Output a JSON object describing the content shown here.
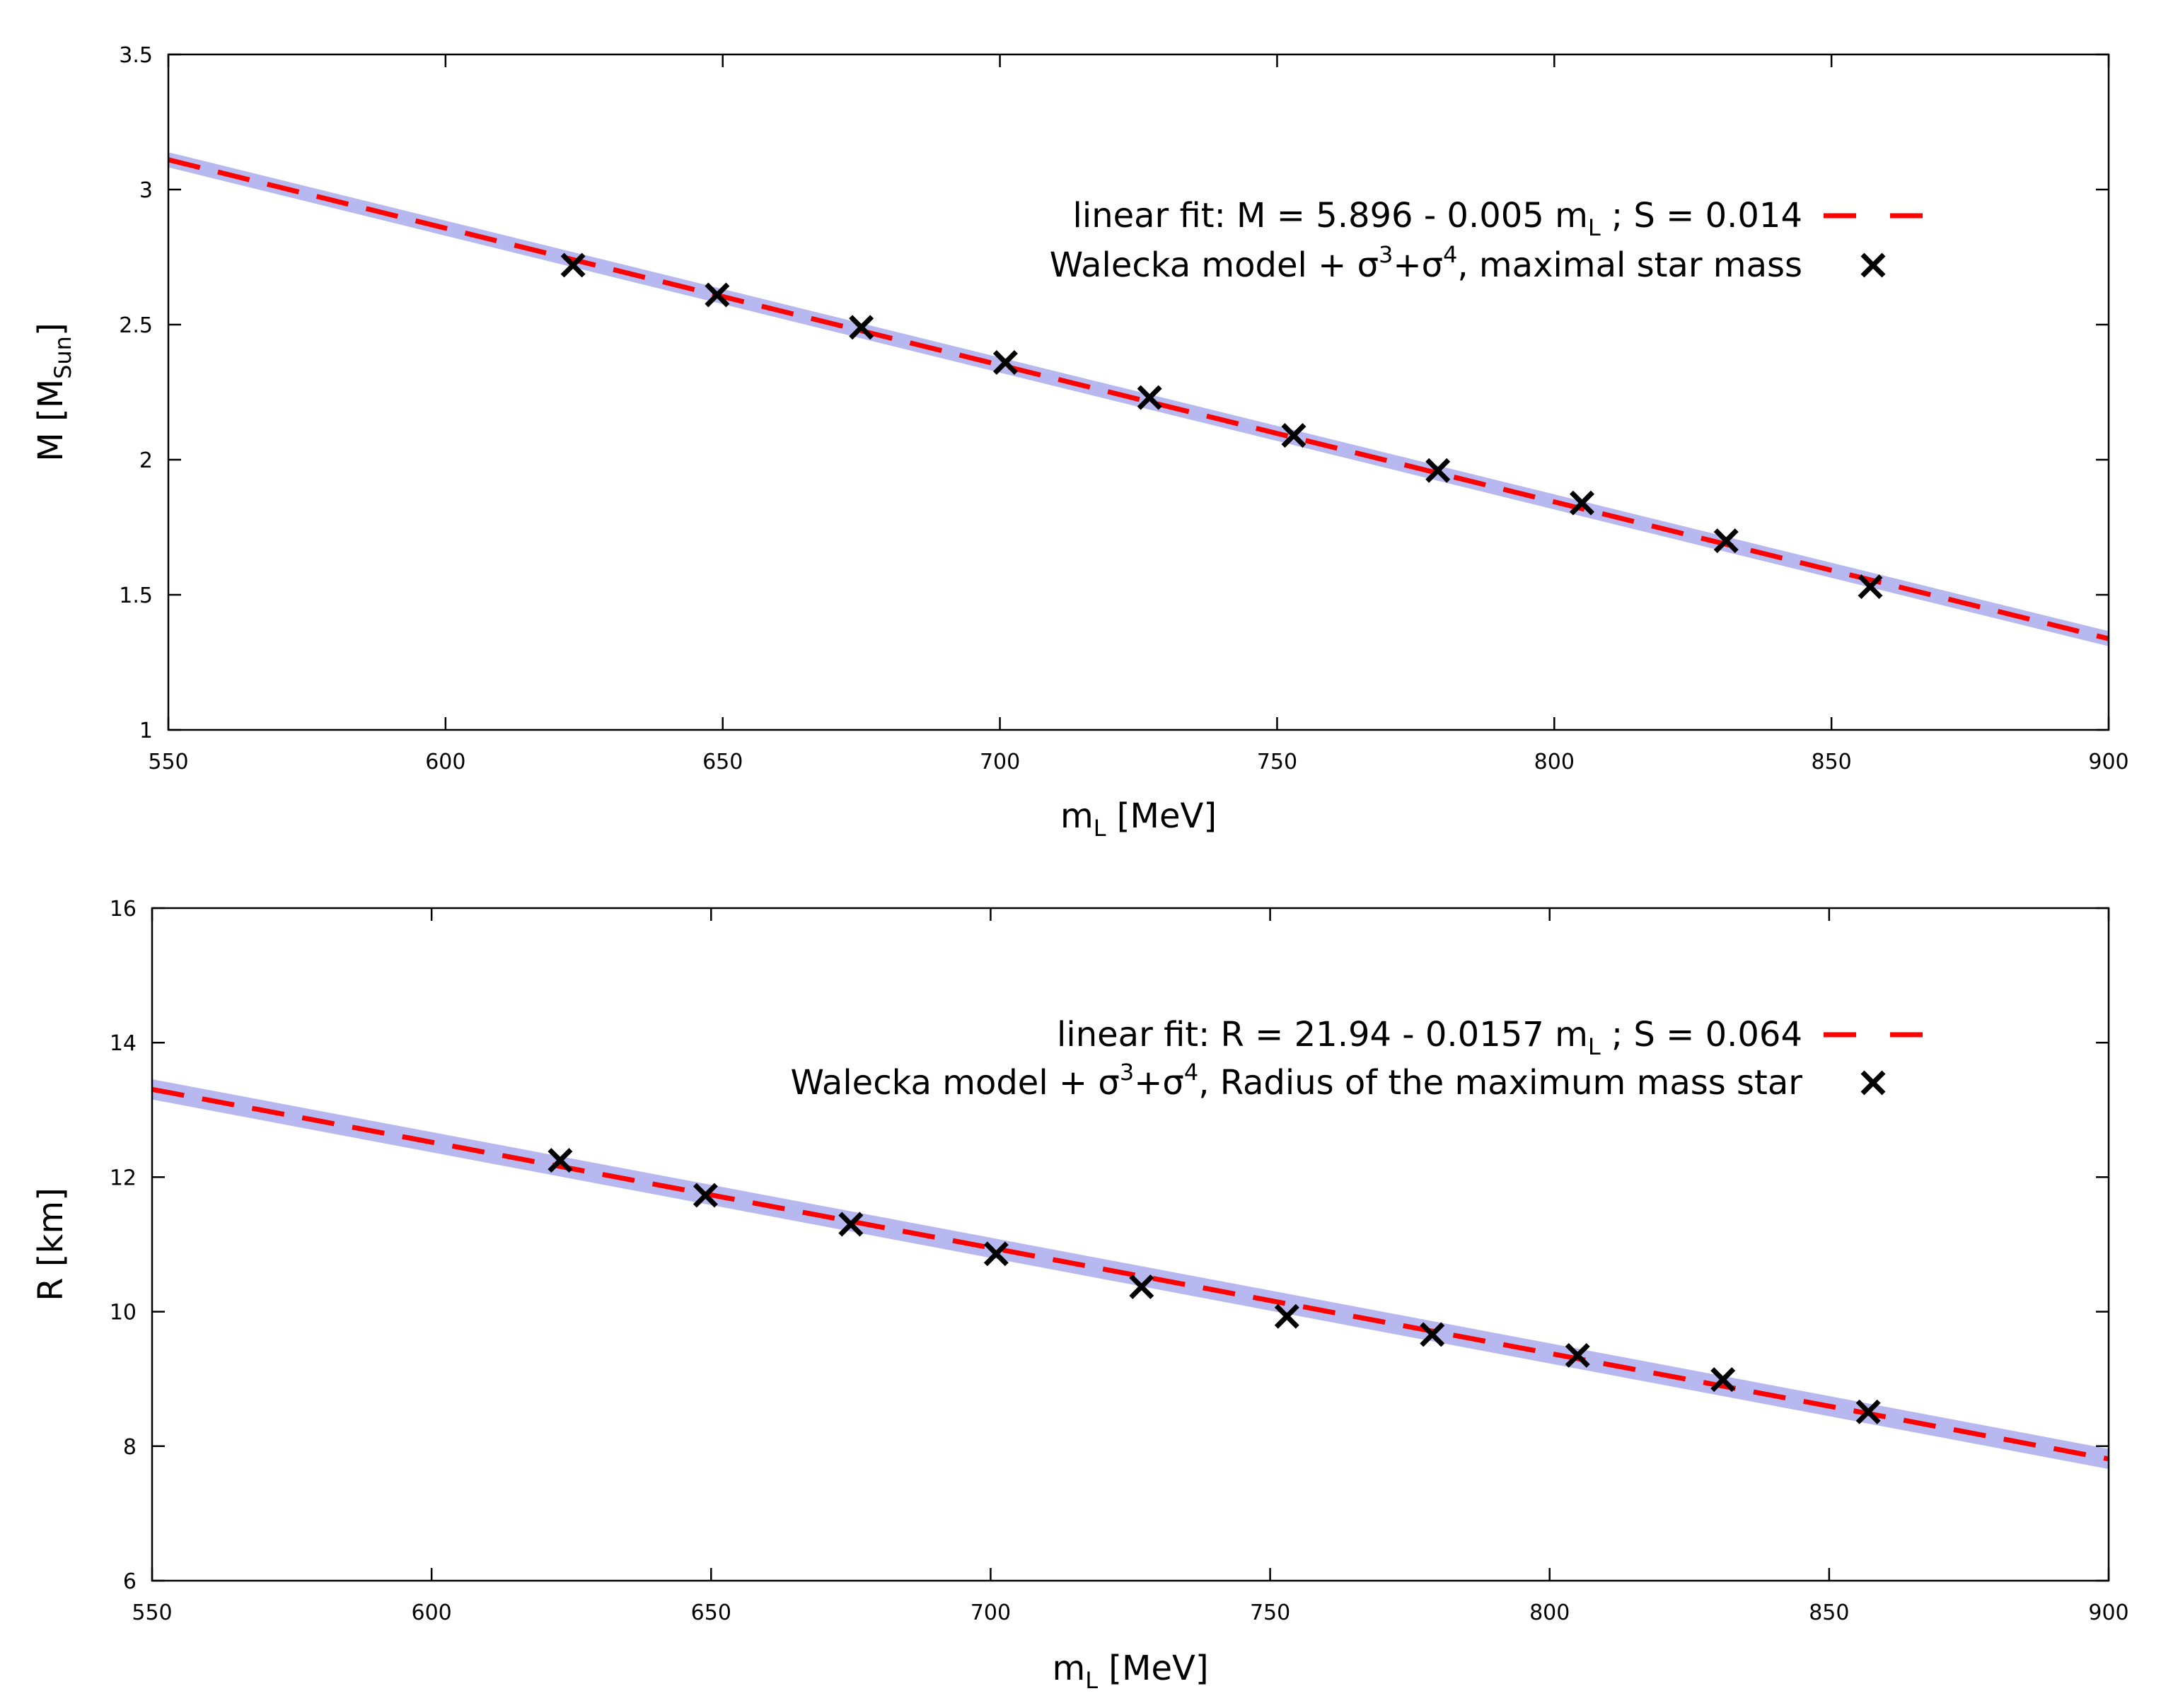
{
  "chart_data": [
    {
      "type": "scatter",
      "xlabel": {
        "main": "m",
        "sub": "L",
        "rest": " [MeV]"
      },
      "ylabel": {
        "main": "M [M",
        "sub": "Sun",
        "rest": "]"
      },
      "xlim": [
        550,
        900
      ],
      "ylim": [
        1,
        3.5
      ],
      "xticks": [
        550,
        600,
        650,
        700,
        750,
        800,
        850,
        900
      ],
      "yticks": [
        1,
        1.5,
        2,
        2.5,
        3,
        3.5
      ],
      "ytick_labels": [
        "1",
        "1.5",
        "2",
        "2.5",
        "3",
        "3.5"
      ],
      "grid": false,
      "legend_position": "top-right",
      "fit": {
        "intercept": 5.896,
        "slope": -0.005065,
        "band_halfwidth": 0.028
      },
      "series": [
        {
          "name": "linear fit",
          "style": "dashed-line",
          "legend_parts": [
            "linear fit: M = 5.896 - 0.005 m",
            "L",
            " ; S = 0.014"
          ]
        },
        {
          "name": "Walecka model, maximal star mass",
          "style": "cross-marker",
          "legend_parts": [
            "Walecka model + σ",
            "3",
            "+σ",
            "4",
            ", maximal star mass"
          ],
          "x": [
            623,
            649,
            675,
            701,
            727,
            753,
            779,
            805,
            831,
            857
          ],
          "y": [
            2.72,
            2.61,
            2.49,
            2.36,
            2.23,
            2.09,
            1.96,
            1.84,
            1.7,
            1.53
          ]
        }
      ]
    },
    {
      "type": "scatter",
      "xlabel": {
        "main": "m",
        "sub": "L",
        "rest": " [MeV]"
      },
      "ylabel": {
        "main": "R [km]",
        "sub": "",
        "rest": ""
      },
      "xlim": [
        550,
        900
      ],
      "ylim": [
        6,
        16
      ],
      "xticks": [
        550,
        600,
        650,
        700,
        750,
        800,
        850,
        900
      ],
      "yticks": [
        6,
        8,
        10,
        12,
        14,
        16
      ],
      "ytick_labels": [
        "6",
        "8",
        "10",
        "12",
        "14",
        "16"
      ],
      "grid": false,
      "legend_position": "top-right",
      "fit": {
        "intercept": 21.94,
        "slope": -0.0157,
        "band_halfwidth": 0.15
      },
      "series": [
        {
          "name": "linear fit",
          "style": "dashed-line",
          "legend_parts": [
            "linear fit: R = 21.94 - 0.0157 m",
            "L",
            " ; S = 0.064"
          ]
        },
        {
          "name": "Walecka model, Radius of the maximum mass star",
          "style": "cross-marker",
          "legend_parts": [
            "Walecka model + σ",
            "3",
            "+σ",
            "4",
            ", Radius of the maximum mass star"
          ],
          "x": [
            623,
            649,
            675,
            701,
            727,
            753,
            779,
            805,
            831,
            857
          ],
          "y": [
            12.25,
            11.73,
            11.3,
            10.86,
            10.37,
            9.93,
            9.66,
            9.35,
            8.99,
            8.51
          ]
        }
      ]
    }
  ],
  "colors": {
    "fit_line": "#ff0000",
    "band": "#b8b8f0",
    "marker": "#000000",
    "axis": "#000000"
  }
}
